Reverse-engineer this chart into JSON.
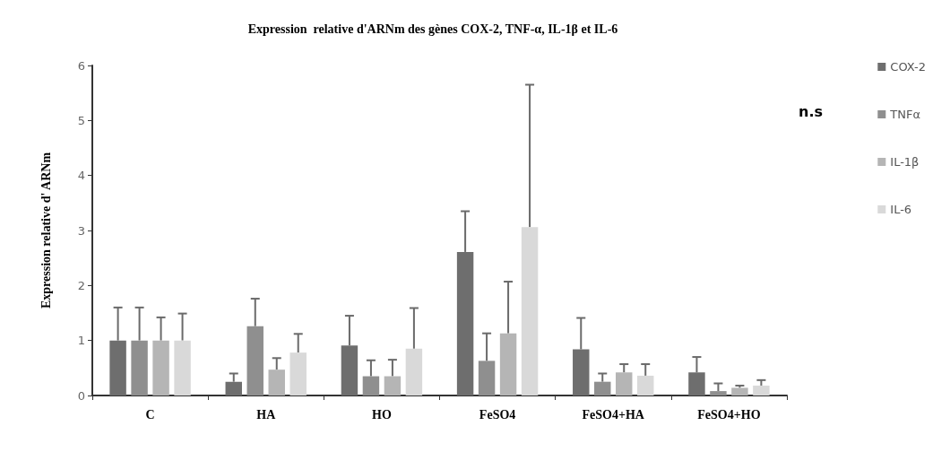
{
  "chart_data": {
    "type": "bar",
    "title": "Expression  relative d'ARNm des gènes COX-2, TNF-α, IL-1β et IL-6",
    "ylabel": "Expression relative d' ARNm",
    "categories": [
      "C",
      "HA",
      "HO",
      "FeSO4",
      "FeSO4+HA",
      "FeSO4+HO"
    ],
    "series": [
      {
        "name": "COX-2",
        "color": "#6e6e6e",
        "values": [
          1.0,
          0.25,
          0.91,
          2.61,
          0.84,
          0.42
        ],
        "errors": [
          [
            1.0,
            1.6
          ],
          [
            0.25,
            0.4
          ],
          [
            0.91,
            1.45
          ],
          [
            2.61,
            3.35
          ],
          [
            0.84,
            1.41
          ],
          [
            0.42,
            0.7
          ]
        ]
      },
      {
        "name": "TNFα",
        "color": "#8f8f8f",
        "values": [
          1.0,
          1.26,
          0.35,
          0.63,
          0.25,
          0.08
        ],
        "errors": [
          [
            1.0,
            1.6
          ],
          [
            1.26,
            1.76
          ],
          [
            0.35,
            0.64
          ],
          [
            0.63,
            1.13
          ],
          [
            0.25,
            0.4
          ],
          [
            0.08,
            0.22
          ]
        ]
      },
      {
        "name": "IL-1β",
        "color": "#b5b5b5",
        "values": [
          1.0,
          0.47,
          0.35,
          1.13,
          0.42,
          0.14
        ],
        "errors": [
          [
            1.0,
            1.42
          ],
          [
            0.47,
            0.68
          ],
          [
            0.35,
            0.65
          ],
          [
            1.13,
            2.07
          ],
          [
            0.42,
            0.57
          ],
          [
            0.14,
            0.18
          ]
        ]
      },
      {
        "name": "IL-6",
        "color": "#d9d9d9",
        "values": [
          1.0,
          0.78,
          0.85,
          3.06,
          0.36,
          0.18
        ],
        "errors": [
          [
            1.0,
            1.49
          ],
          [
            0.78,
            1.12
          ],
          [
            0.85,
            1.59
          ],
          [
            3.06,
            5.65
          ],
          [
            0.36,
            0.57
          ],
          [
            0.18,
            0.28
          ]
        ]
      }
    ],
    "ylim": [
      0,
      6
    ],
    "yticks": [
      0,
      1,
      2,
      3,
      4,
      5,
      6
    ],
    "grid": false,
    "legend": "right",
    "annotations": [
      "n.s"
    ]
  }
}
